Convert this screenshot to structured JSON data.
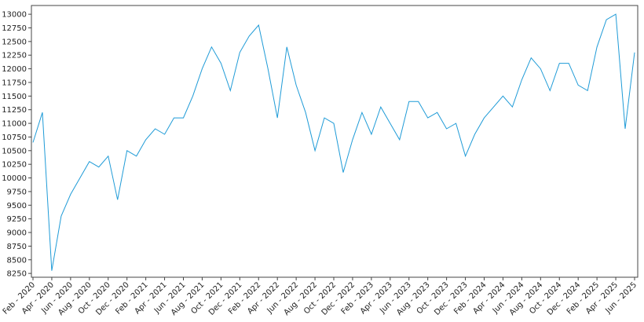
{
  "chart_data": {
    "type": "line",
    "x": [
      "2020-02",
      "2020-03",
      "2020-04",
      "2020-05",
      "2020-06",
      "2020-07",
      "2020-08",
      "2020-09",
      "2020-10",
      "2020-11",
      "2020-12",
      "2021-01",
      "2021-02",
      "2021-03",
      "2021-04",
      "2021-05",
      "2021-06",
      "2021-07",
      "2021-08",
      "2021-09",
      "2021-10",
      "2021-11",
      "2021-12",
      "2022-01",
      "2022-02",
      "2022-03",
      "2022-04",
      "2022-05",
      "2022-06",
      "2022-07",
      "2022-08",
      "2022-09",
      "2022-10",
      "2022-11",
      "2022-12",
      "2023-01",
      "2023-02",
      "2023-03",
      "2023-04",
      "2023-05",
      "2023-06",
      "2023-07",
      "2023-08",
      "2023-09",
      "2023-10",
      "2023-11",
      "2023-12",
      "2024-01",
      "2024-02",
      "2024-03",
      "2024-04",
      "2024-05",
      "2024-06",
      "2024-07",
      "2024-08",
      "2024-09",
      "2024-10",
      "2024-11",
      "2024-12",
      "2025-01",
      "2025-02",
      "2025-03",
      "2025-04",
      "2025-05",
      "2025-06"
    ],
    "series": [
      {
        "color": "#1f9bd7",
        "values": [
          10650,
          11200,
          8300,
          9300,
          9700,
          10000,
          10300,
          10200,
          10400,
          9600,
          10500,
          10400,
          10700,
          10900,
          10800,
          11100,
          11100,
          11500,
          12000,
          12400,
          12100,
          11600,
          12300,
          12600,
          12800,
          12000,
          11100,
          12400,
          11700,
          11200,
          10500,
          11100,
          11000,
          10100,
          10700,
          11200,
          10800,
          11300,
          11000,
          10700,
          11400,
          11400,
          11100,
          11200,
          10900,
          11000,
          10400,
          10800,
          11100,
          11300,
          11500,
          11300,
          11800,
          12200,
          12000,
          11600,
          12100,
          12100,
          11700,
          11600,
          12400,
          12900,
          13000,
          10900,
          12300
        ]
      }
    ],
    "xlim": [
      "2020-02",
      "2025-06"
    ],
    "xticks": [
      {
        "value": "2020-02",
        "label": "Feb - 2020"
      },
      {
        "value": "2020-04",
        "label": "Apr - 2020"
      },
      {
        "value": "2020-06",
        "label": "Jun - 2020"
      },
      {
        "value": "2020-08",
        "label": "Aug - 2020"
      },
      {
        "value": "2020-10",
        "label": "Oct - 2020"
      },
      {
        "value": "2020-12",
        "label": "Dec - 2020"
      },
      {
        "value": "2021-02",
        "label": "Feb - 2021"
      },
      {
        "value": "2021-04",
        "label": "Apr - 2021"
      },
      {
        "value": "2021-06",
        "label": "Jun - 2021"
      },
      {
        "value": "2021-08",
        "label": "Aug - 2021"
      },
      {
        "value": "2021-10",
        "label": "Oct - 2021"
      },
      {
        "value": "2021-12",
        "label": "Dec - 2021"
      },
      {
        "value": "2022-02",
        "label": "Feb - 2022"
      },
      {
        "value": "2022-04",
        "label": "Apr - 2022"
      },
      {
        "value": "2022-06",
        "label": "Jun - 2022"
      },
      {
        "value": "2022-08",
        "label": "Aug - 2022"
      },
      {
        "value": "2022-10",
        "label": "Oct - 2022"
      },
      {
        "value": "2022-12",
        "label": "Dec - 2022"
      },
      {
        "value": "2023-02",
        "label": "Feb - 2023"
      },
      {
        "value": "2023-04",
        "label": "Apr - 2023"
      },
      {
        "value": "2023-06",
        "label": "Jun - 2023"
      },
      {
        "value": "2023-08",
        "label": "Aug - 2023"
      },
      {
        "value": "2023-10",
        "label": "Oct - 2023"
      },
      {
        "value": "2023-12",
        "label": "Dec - 2023"
      },
      {
        "value": "2024-02",
        "label": "Feb - 2024"
      },
      {
        "value": "2024-04",
        "label": "Apr - 2024"
      },
      {
        "value": "2024-06",
        "label": "Jun - 2024"
      },
      {
        "value": "2024-08",
        "label": "Aug - 2024"
      },
      {
        "value": "2024-10",
        "label": "Oct - 2024"
      },
      {
        "value": "2024-12",
        "label": "Dec - 2024"
      },
      {
        "value": "2025-02",
        "label": "Feb - 2025"
      },
      {
        "value": "2025-04",
        "label": "Apr - 2025"
      },
      {
        "value": "2025-06",
        "label": "Jun - 2025"
      }
    ],
    "ylim": [
      8180,
      13160
    ],
    "yticks": [
      8250,
      8500,
      8750,
      9000,
      9250,
      9500,
      9750,
      10000,
      10250,
      10500,
      10750,
      11000,
      11250,
      11500,
      11750,
      12000,
      12250,
      12500,
      12750,
      13000
    ],
    "grid": false
  }
}
